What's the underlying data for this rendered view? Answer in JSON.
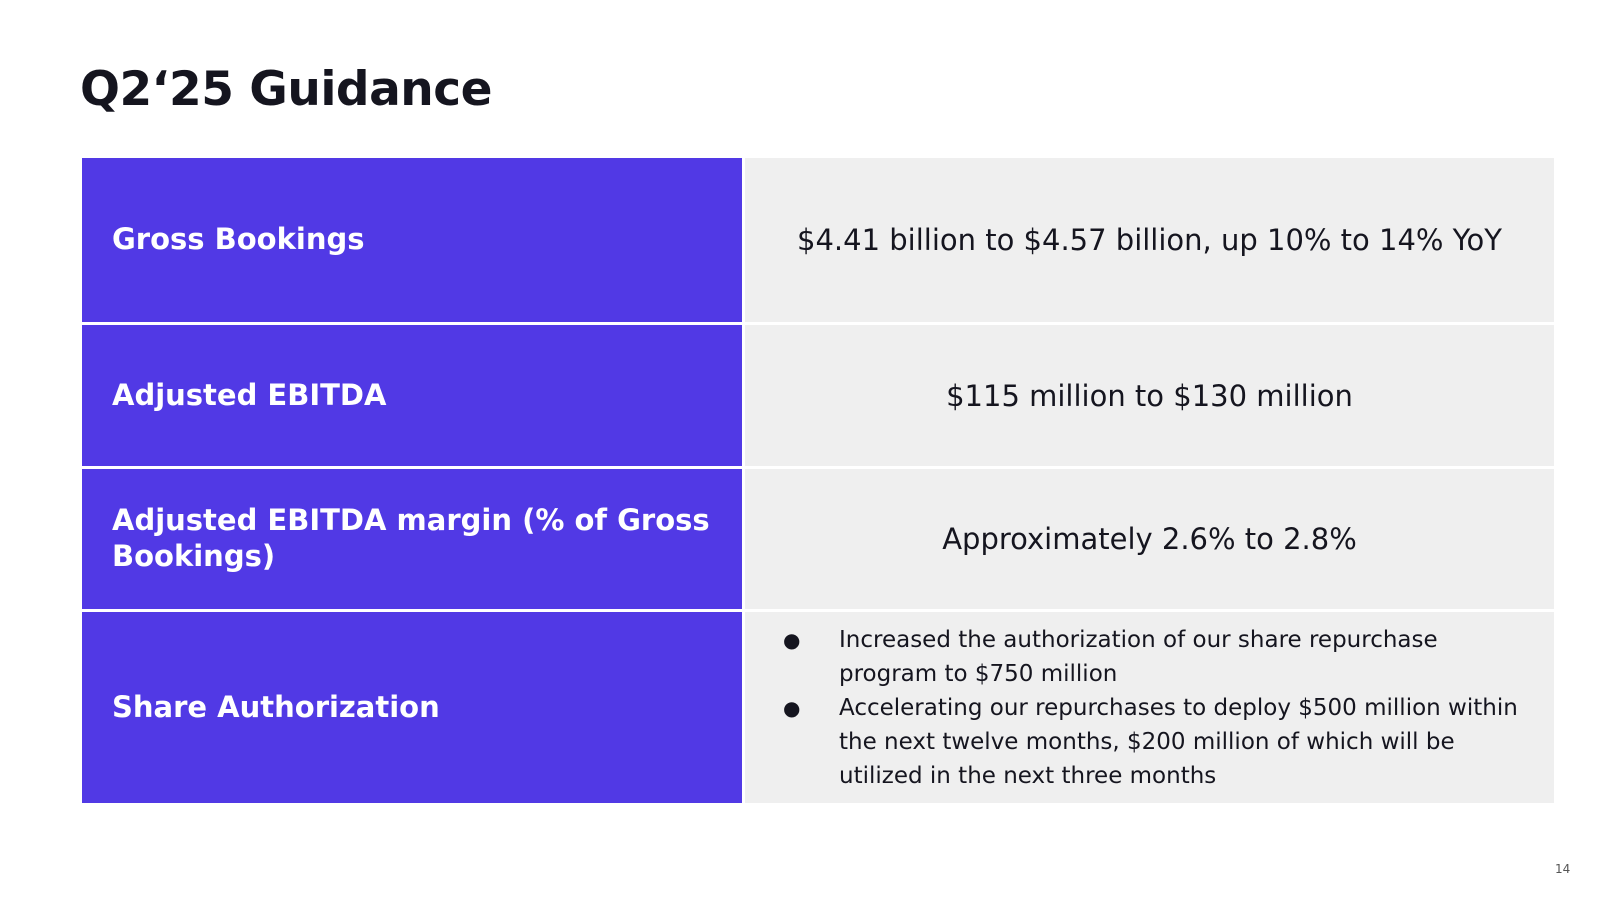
{
  "slide": {
    "title": "Q2‘25 Guidance",
    "page_number": "14"
  },
  "table": {
    "rows": [
      {
        "label": "Gross Bookings",
        "value": "$4.41 billion to $4.57 billion, up 10% to 14% YoY"
      },
      {
        "label": "Adjusted EBITDA",
        "value": "$115 million to $130 million"
      },
      {
        "label": "Adjusted EBITDA margin (% of Gross Bookings)",
        "value": "Approximately 2.6% to 2.8%"
      },
      {
        "label": "Share Authorization",
        "bullets": [
          "Increased the authorization of our share repurchase program to $750 million",
          "Accelerating our repurchases to deploy $500 million within the next twelve months, $200 million of which will be utilized in the next three months"
        ]
      }
    ]
  },
  "colors": {
    "label_background": "#5139e5",
    "value_background": "#efefef"
  }
}
